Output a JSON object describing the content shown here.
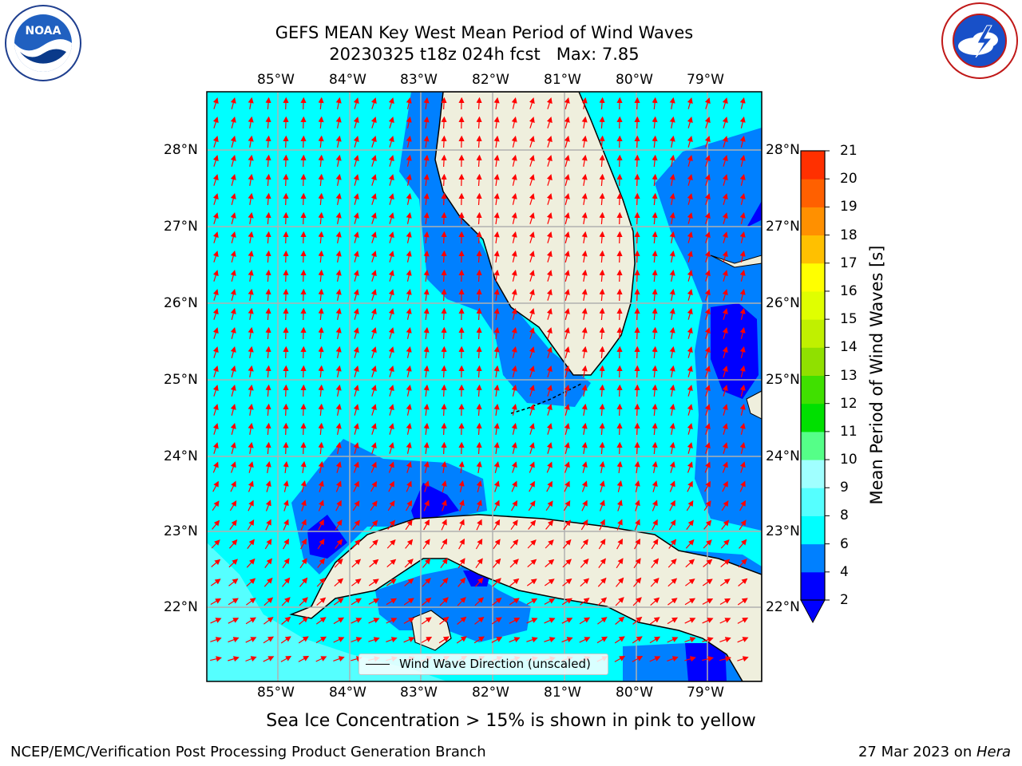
{
  "title": {
    "line1": "GEFS MEAN Key West Mean Period of Wind Waves",
    "line2": "20230325 t18z 024h fcst   Max: 7.85"
  },
  "logos": {
    "left": {
      "text": "NOAA",
      "ring": "NATIONAL OCEANIC AND ATMOSPHERIC ADMINISTRATION · U.S. DEPARTMENT OF COMMERCE",
      "icon": "noaa-logo-icon"
    },
    "right": {
      "ring": "NATIONAL WEATHER SERVICE",
      "icon": "nws-logo-icon"
    }
  },
  "axes": {
    "lon_labels": [
      "85°W",
      "84°W",
      "83°W",
      "82°W",
      "81°W",
      "80°W",
      "79°W"
    ],
    "lat_labels": [
      "28°N",
      "27°N",
      "26°N",
      "25°N",
      "24°N",
      "23°N",
      "22°N"
    ],
    "lon_range": [
      -86.0,
      -78.2
    ],
    "lat_range": [
      21.05,
      28.75
    ]
  },
  "legend": {
    "label": "Wind Wave Direction (unscaled)"
  },
  "colorbar": {
    "label": "Mean Period of Wind Waves [s]",
    "ticks": [
      "2",
      "4",
      "6",
      "8",
      "9",
      "10",
      "11",
      "12",
      "13",
      "14",
      "15",
      "16",
      "17",
      "18",
      "19",
      "20",
      "21"
    ],
    "colors": [
      "#0000ff",
      "#0080ff",
      "#00ffff",
      "#55ffff",
      "#a0ffff",
      "#55ff88",
      "#00e000",
      "#40e000",
      "#90e000",
      "#c0f000",
      "#e0ff00",
      "#ffff00",
      "#ffc000",
      "#ff9000",
      "#ff6000",
      "#ff3000",
      "#ff0000"
    ]
  },
  "chart_data": {
    "type": "contour-map",
    "variable": "Mean Period of Wind Waves",
    "units": "s",
    "max": 7.85,
    "levels": [
      2,
      4,
      6,
      8,
      9,
      10,
      11,
      12,
      13,
      14,
      15,
      16,
      17,
      18,
      19,
      20,
      21
    ],
    "vectors": "Wind Wave Direction (unscaled)",
    "arrow_color": "#ff0000"
  },
  "footnote": "Sea Ice Concentration > 15% is shown in pink to yellow",
  "footer": {
    "left": "NCEP/EMC/Verification Post Processing Product Generation Branch",
    "right_date": "27 Mar 2023 on ",
    "right_host": "Hera"
  }
}
